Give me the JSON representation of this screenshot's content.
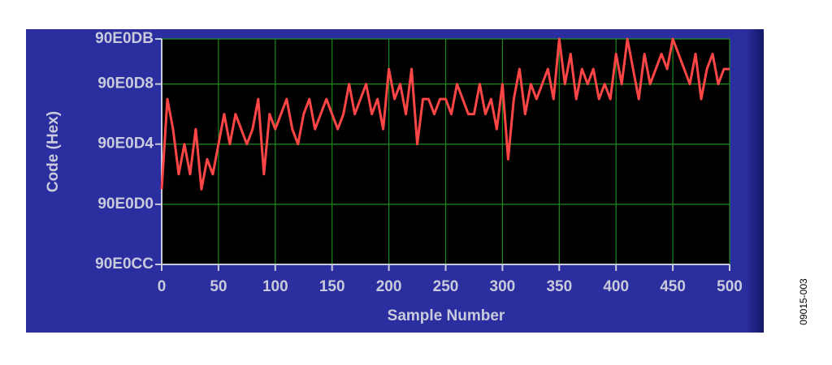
{
  "chart_data": {
    "type": "line",
    "x_label": "Sample Number",
    "y_label": "Code (Hex)",
    "x": [
      0,
      5,
      10,
      15,
      20,
      25,
      30,
      35,
      40,
      45,
      50,
      55,
      60,
      65,
      70,
      75,
      80,
      85,
      90,
      95,
      100,
      105,
      110,
      115,
      120,
      125,
      130,
      135,
      140,
      145,
      150,
      155,
      160,
      165,
      170,
      175,
      180,
      185,
      190,
      195,
      200,
      205,
      210,
      215,
      220,
      225,
      230,
      235,
      240,
      245,
      250,
      255,
      260,
      265,
      270,
      275,
      280,
      285,
      290,
      295,
      300,
      305,
      310,
      315,
      320,
      325,
      330,
      335,
      340,
      345,
      350,
      355,
      360,
      365,
      370,
      375,
      380,
      385,
      390,
      395,
      400,
      405,
      410,
      415,
      420,
      425,
      430,
      435,
      440,
      445,
      450,
      455,
      460,
      465,
      470,
      475,
      480,
      485,
      490,
      495,
      500
    ],
    "values": [
      9494737,
      9494743,
      9494741,
      9494738,
      9494740,
      9494738,
      9494741,
      9494737,
      9494739,
      9494738,
      9494740,
      9494742,
      9494740,
      9494742,
      9494741,
      9494740,
      9494741,
      9494743,
      9494738,
      9494742,
      9494741,
      9494742,
      9494743,
      9494741,
      9494740,
      9494742,
      9494743,
      9494741,
      9494742,
      9494743,
      9494742,
      9494741,
      9494742,
      9494744,
      9494742,
      9494743,
      9494744,
      9494742,
      9494743,
      9494741,
      9494745,
      9494743,
      9494744,
      9494742,
      9494745,
      9494740,
      9494743,
      9494743,
      9494742,
      9494743,
      9494743,
      9494742,
      9494744,
      9494743,
      9494742,
      9494742,
      9494744,
      9494742,
      9494743,
      9494741,
      9494744,
      9494739,
      9494743,
      9494745,
      9494742,
      9494744,
      9494743,
      9494744,
      9494745,
      9494743,
      9494747,
      9494744,
      9494746,
      9494743,
      9494745,
      9494744,
      9494745,
      9494743,
      9494744,
      9494743,
      9494746,
      9494744,
      9494747,
      9494745,
      9494743,
      9494746,
      9494744,
      9494745,
      9494746,
      9494745,
      9494747,
      9494746,
      9494745,
      9494744,
      9494746,
      9494743,
      9494745,
      9494746,
      9494744,
      9494745,
      9494745
    ],
    "color": "#ff4646",
    "xlim": [
      0,
      500
    ],
    "xticks": [
      0,
      50,
      100,
      150,
      200,
      250,
      300,
      350,
      400,
      450,
      500
    ],
    "ylim": [
      9494732,
      9494747
    ],
    "yticks": [
      {
        "value": 9494732,
        "label": "90E0CC"
      },
      {
        "value": 9494736,
        "label": "90E0D0"
      },
      {
        "value": 9494740,
        "label": "90E0D4"
      },
      {
        "value": 9494744,
        "label": "90E0D8"
      },
      {
        "value": 9494747,
        "label": "90E0DB"
      }
    ],
    "grid": true
  },
  "figure_id": "09015-003"
}
